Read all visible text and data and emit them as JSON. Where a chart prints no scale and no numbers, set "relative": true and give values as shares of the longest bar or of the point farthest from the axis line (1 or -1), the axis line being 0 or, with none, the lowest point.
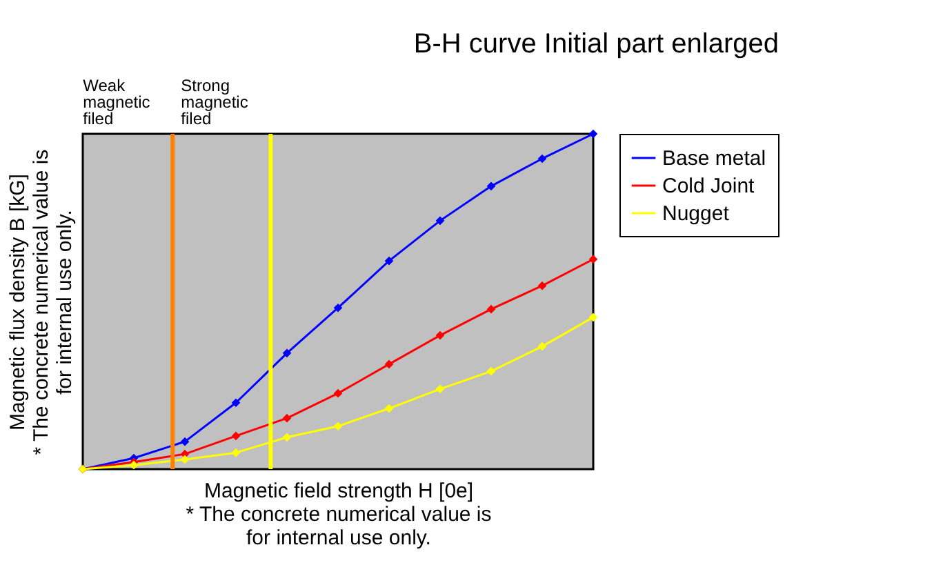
{
  "chart_data": {
    "type": "line",
    "title": "B-H curve  Initial part enlarged",
    "xlabel": "Magnetic field strength H [0e]",
    "ylabel": "Magnetic flux density B [kG]",
    "annotations": [
      "* The concrete numerical value is for internal use only.",
      "* The concrete numerical value is for internal use only."
    ],
    "relative": true,
    "categories": [
      null,
      null,
      null,
      null,
      null,
      null,
      null,
      null,
      null,
      null,
      null
    ],
    "series": [
      {
        "name": "Base metal",
        "color": "#0000ff",
        "values": [
          0,
          0.033,
          0.082,
          0.198,
          0.346,
          0.481,
          0.621,
          0.741,
          0.844,
          0.926,
          1
        ]
      },
      {
        "name": "Cold Joint",
        "color": "#ff0000",
        "values": [
          0,
          0.021,
          0.045,
          0.099,
          0.152,
          0.226,
          0.313,
          0.399,
          0.477,
          0.547,
          0.626
        ]
      },
      {
        "name": "Nugget",
        "color": "#ffff00",
        "values": [
          0,
          0.012,
          0.029,
          0.049,
          0.095,
          0.128,
          0.181,
          0.239,
          0.292,
          0.366,
          0.453
        ]
      }
    ],
    "ref_lines": [
      {
        "axis": "x",
        "label": "Weak magnetic filed",
        "color": "#ff8000"
      },
      {
        "axis": "x",
        "label": "Strong magnetic filed",
        "color": "#ffff00"
      }
    ],
    "marker": "diamond",
    "legend": "right"
  }
}
